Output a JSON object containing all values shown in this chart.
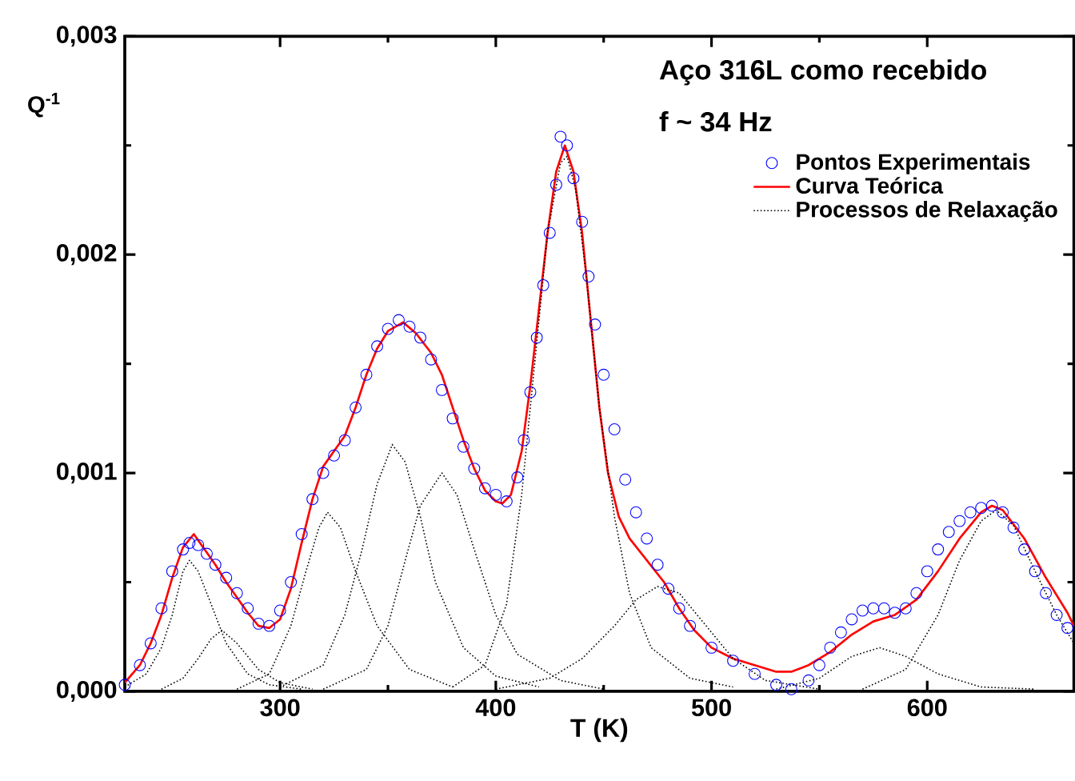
{
  "chart_data": {
    "type": "line",
    "xlabel": "T (K)",
    "ylabel": "Q$^{-1}$",
    "annotations": [
      "Aço 316L como recebido",
      "f ~ 34 Hz"
    ],
    "xlim": [
      228,
      668
    ],
    "ylim": [
      0,
      0.003
    ],
    "xticks": [
      300,
      400,
      500,
      600
    ],
    "yticks": [
      {
        "value": 0,
        "label": "0,000"
      },
      {
        "value": 0.001,
        "label": "0,001"
      },
      {
        "value": 0.002,
        "label": "0,002"
      },
      {
        "value": 0.003,
        "label": "0,003"
      }
    ],
    "legend": "top right",
    "grid": false,
    "series": [
      {
        "name": "Pontos Experimentais",
        "type": "scatter",
        "marker": "circle",
        "color": "#0000ff",
        "x": [
          228,
          235,
          240,
          245,
          250,
          255,
          258,
          262,
          266,
          270,
          275,
          280,
          285,
          290,
          295,
          300,
          305,
          310,
          315,
          320,
          325,
          330,
          335,
          340,
          345,
          350,
          355,
          360,
          365,
          370,
          375,
          380,
          385,
          390,
          395,
          400,
          405,
          410,
          413,
          416,
          419,
          422,
          425,
          428,
          430,
          433,
          436,
          440,
          443,
          446,
          450,
          455,
          460,
          465,
          470,
          475,
          480,
          485,
          490,
          500,
          510,
          520,
          530,
          537,
          545,
          550,
          555,
          560,
          565,
          570,
          575,
          580,
          585,
          590,
          595,
          600,
          605,
          610,
          615,
          620,
          625,
          630,
          635,
          640,
          645,
          650,
          655,
          660,
          665
        ],
        "values": [
          3e-05,
          0.00012,
          0.00022,
          0.00038,
          0.00055,
          0.00065,
          0.00068,
          0.00067,
          0.00063,
          0.00058,
          0.00052,
          0.00045,
          0.00038,
          0.00031,
          0.0003,
          0.00037,
          0.0005,
          0.00072,
          0.00088,
          0.001,
          0.00108,
          0.00115,
          0.0013,
          0.00145,
          0.00158,
          0.00166,
          0.0017,
          0.00167,
          0.00162,
          0.00152,
          0.00138,
          0.00125,
          0.00112,
          0.00102,
          0.00093,
          0.0009,
          0.00087,
          0.00098,
          0.00115,
          0.00137,
          0.00162,
          0.00186,
          0.0021,
          0.00232,
          0.00254,
          0.0025,
          0.00235,
          0.00215,
          0.0019,
          0.00168,
          0.00145,
          0.0012,
          0.00097,
          0.00082,
          0.0007,
          0.00058,
          0.00047,
          0.00038,
          0.0003,
          0.0002,
          0.00014,
          8e-05,
          3e-05,
          1e-05,
          5e-05,
          0.00012,
          0.0002,
          0.00027,
          0.00033,
          0.00037,
          0.00038,
          0.00038,
          0.00036,
          0.00038,
          0.00045,
          0.00055,
          0.00065,
          0.00073,
          0.00078,
          0.00082,
          0.00084,
          0.00085,
          0.00082,
          0.00075,
          0.00065,
          0.00055,
          0.00045,
          0.00035,
          0.00029
        ]
      },
      {
        "name": "Curva Teórica",
        "type": "line",
        "line_style": "solid",
        "color": "#ff0000",
        "x": [
          228,
          235,
          240,
          245,
          250,
          255,
          260,
          265,
          270,
          275,
          280,
          285,
          290,
          295,
          300,
          305,
          310,
          315,
          320,
          325,
          330,
          335,
          340,
          345,
          350,
          357,
          363,
          370,
          375,
          380,
          385,
          390,
          395,
          400,
          403,
          407,
          412,
          416,
          420,
          424,
          428,
          432,
          436,
          440,
          444,
          448,
          452,
          457,
          462,
          470,
          478,
          485,
          492,
          500,
          510,
          520,
          530,
          537,
          545,
          555,
          565,
          575,
          585,
          595,
          605,
          615,
          625,
          630,
          635,
          645,
          655,
          665,
          668
        ],
        "values": [
          4e-05,
          0.00012,
          0.00022,
          0.00035,
          0.00052,
          0.00066,
          0.00072,
          0.00065,
          0.00058,
          0.0005,
          0.00043,
          0.00036,
          0.0003,
          0.00029,
          0.00033,
          0.00047,
          0.00068,
          0.00088,
          0.00103,
          0.0011,
          0.00117,
          0.0013,
          0.00145,
          0.00157,
          0.00165,
          0.00169,
          0.00164,
          0.00155,
          0.00145,
          0.0013,
          0.00115,
          0.00102,
          0.00092,
          0.00087,
          0.00086,
          0.0009,
          0.0011,
          0.0014,
          0.00175,
          0.0021,
          0.00238,
          0.0025,
          0.00238,
          0.0021,
          0.0017,
          0.0013,
          0.001,
          0.0008,
          0.0007,
          0.0006,
          0.0005,
          0.00038,
          0.00028,
          0.0002,
          0.00015,
          0.00012,
          9e-05,
          9e-05,
          0.00012,
          0.00018,
          0.00026,
          0.00032,
          0.00035,
          0.00042,
          0.00055,
          0.0007,
          0.00082,
          0.00085,
          0.00083,
          0.0007,
          0.00052,
          0.00036,
          0.0003
        ]
      },
      {
        "name": "Processos de Relaxação",
        "type": "line",
        "line_style": "dotted",
        "color": "#000000",
        "x": [
          228,
          238,
          245,
          250,
          255,
          258,
          262,
          268,
          275,
          285,
          295,
          310
        ],
        "values": [
          2e-05,
          8e-05,
          0.0002,
          0.00035,
          0.00055,
          0.0006,
          0.00055,
          0.0004,
          0.00022,
          8e-05,
          3e-05,
          1e-05
        ]
      },
      {
        "type": "line",
        "line_style": "dotted",
        "color": "#000000",
        "x": [
          245,
          255,
          262,
          268,
          273,
          280,
          290,
          300,
          315
        ],
        "values": [
          1e-05,
          6e-05,
          0.00015,
          0.00024,
          0.00028,
          0.00022,
          0.0001,
          4e-05,
          1e-05
        ]
      },
      {
        "type": "line",
        "line_style": "dotted",
        "color": "#000000",
        "x": [
          280,
          295,
          305,
          312,
          318,
          322,
          328,
          335,
          345,
          360,
          380
        ],
        "values": [
          1e-05,
          8e-05,
          0.0003,
          0.00055,
          0.00075,
          0.00082,
          0.00075,
          0.00055,
          0.0003,
          0.0001,
          2e-05
        ]
      },
      {
        "type": "line",
        "line_style": "dotted",
        "color": "#000000",
        "x": [
          300,
          320,
          330,
          338,
          345,
          352,
          358,
          365,
          372,
          385,
          400,
          420
        ],
        "values": [
          2e-05,
          0.00012,
          0.00035,
          0.00065,
          0.00095,
          0.00113,
          0.00105,
          0.0008,
          0.0005,
          0.0002,
          7e-05,
          2e-05
        ]
      },
      {
        "type": "line",
        "line_style": "dotted",
        "color": "#000000",
        "x": [
          320,
          340,
          350,
          358,
          365,
          375,
          382,
          390,
          400,
          410,
          430,
          450
        ],
        "values": [
          1e-05,
          0.0001,
          0.0003,
          0.0006,
          0.00085,
          0.001,
          0.0009,
          0.00065,
          0.00035,
          0.00017,
          5e-05,
          1e-05
        ]
      },
      {
        "type": "line",
        "line_style": "dotted",
        "color": "#000000",
        "x": [
          380,
          395,
          405,
          412,
          418,
          424,
          430,
          433,
          437,
          442,
          448,
          455,
          462,
          472,
          490,
          510
        ],
        "values": [
          2e-05,
          0.00012,
          0.0004,
          0.0009,
          0.0015,
          0.0021,
          0.00242,
          0.00245,
          0.0023,
          0.0019,
          0.0013,
          0.0008,
          0.00045,
          0.0002,
          6e-05,
          2e-05
        ]
      },
      {
        "type": "line",
        "line_style": "dotted",
        "color": "#000000",
        "x": [
          400,
          425,
          440,
          455,
          465,
          475,
          485,
          495,
          510,
          525,
          550
        ],
        "values": [
          1e-05,
          6e-05,
          0.00015,
          0.0003,
          0.00042,
          0.00048,
          0.00045,
          0.00033,
          0.00015,
          5e-05,
          1e-05
        ]
      },
      {
        "type": "line",
        "line_style": "dotted",
        "color": "#000000",
        "x": [
          530,
          550,
          565,
          578,
          590,
          605,
          625,
          650
        ],
        "values": [
          1e-05,
          6e-05,
          0.00016,
          0.0002,
          0.00016,
          8e-05,
          2e-05,
          1e-05
        ]
      },
      {
        "type": "line",
        "line_style": "dotted",
        "color": "#000000",
        "x": [
          570,
          590,
          605,
          615,
          625,
          632,
          640,
          650,
          660,
          668
        ],
        "values": [
          1e-05,
          0.0001,
          0.00035,
          0.0006,
          0.00078,
          0.00083,
          0.00076,
          0.00055,
          0.00035,
          0.00022
        ]
      }
    ]
  }
}
